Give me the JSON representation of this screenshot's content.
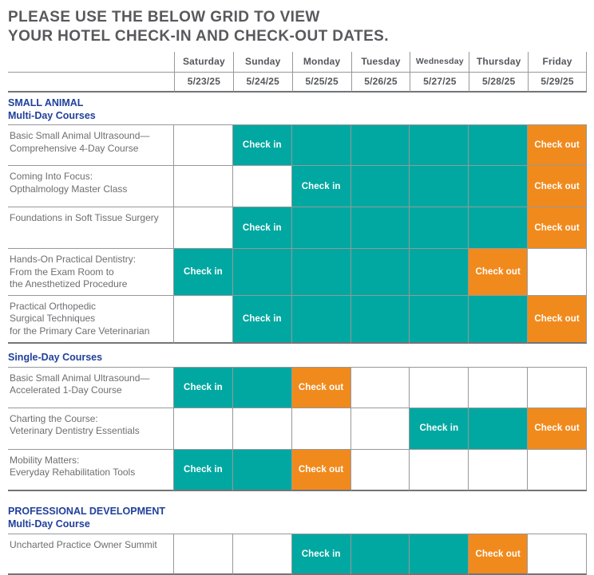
{
  "title": {
    "line1": "PLEASE USE THE BELOW GRID TO VIEW",
    "line2": "YOUR HOTEL CHECK-IN AND CHECK-OUT DATES."
  },
  "colors": {
    "teal": "#00A8A1",
    "orange": "#F18A1D",
    "blue": "#21409B",
    "title_gray": "#58595C",
    "text_gray": "#6D6E71",
    "border_gray": "#96989A"
  },
  "table": {
    "days": [
      "Saturday",
      "Sunday",
      "Monday",
      "Tuesday",
      "Wednesday",
      "Thursday",
      "Friday"
    ],
    "dates": [
      "5/23/25",
      "5/24/25",
      "5/25/25",
      "5/26/25",
      "5/27/25",
      "5/28/25",
      "5/29/25"
    ],
    "checkin_label": "Check in",
    "checkout_label": "Check out",
    "sections": [
      {
        "heading": [
          "SMALL ANIMAL",
          "Multi-Day Courses"
        ],
        "rows": [
          {
            "name": [
              "Basic Small Animal Ultrasound—",
              "Comprehensive 4-Day Course"
            ],
            "cells": [
              "blank",
              "in",
              "stay",
              "stay",
              "stay",
              "stay",
              "out"
            ]
          },
          {
            "name": [
              "Coming Into Focus:",
              "Opthalmology Master Class"
            ],
            "cells": [
              "blank",
              "blank",
              "in",
              "stay",
              "stay",
              "stay",
              "out"
            ]
          },
          {
            "name": [
              "Foundations in Soft Tissue Surgery"
            ],
            "cells": [
              "blank",
              "in",
              "stay",
              "stay",
              "stay",
              "stay",
              "out"
            ]
          },
          {
            "name": [
              "Hands-On Practical Dentistry:",
              "From the Exam Room to",
              "the Anesthetized Procedure"
            ],
            "cells": [
              "in",
              "stay",
              "stay",
              "stay",
              "stay",
              "out",
              "blank"
            ]
          },
          {
            "name": [
              "Practical Orthopedic",
              "Surgical Techniques",
              "for the Primary Care Veterinarian"
            ],
            "cells": [
              "blank",
              "in",
              "stay",
              "stay",
              "stay",
              "stay",
              "out"
            ]
          }
        ]
      },
      {
        "heading": [
          "Single-Day Courses"
        ],
        "rows": [
          {
            "name": [
              "Basic Small Animal Ultrasound—",
              "Accelerated 1-Day Course"
            ],
            "cells": [
              "in",
              "stay",
              "out",
              "blank",
              "blank",
              "blank",
              "blank"
            ]
          },
          {
            "name": [
              "Charting the Course:",
              "Veterinary Dentistry Essentials"
            ],
            "cells": [
              "blank",
              "blank",
              "blank",
              "blank",
              "in",
              "stay",
              "out"
            ]
          },
          {
            "name": [
              "Mobility Matters:",
              "Everyday Rehabilitation Tools"
            ],
            "cells": [
              "in",
              "stay",
              "out",
              "blank",
              "blank",
              "blank",
              "blank"
            ]
          }
        ]
      },
      {
        "heading": [
          "PROFESSIONAL DEVELOPMENT",
          "Multi-Day Course"
        ],
        "rows": [
          {
            "name": [
              "Uncharted Practice Owner Summit"
            ],
            "cells": [
              "blank",
              "blank",
              "in",
              "stay",
              "stay",
              "out",
              "blank"
            ]
          }
        ]
      }
    ]
  }
}
